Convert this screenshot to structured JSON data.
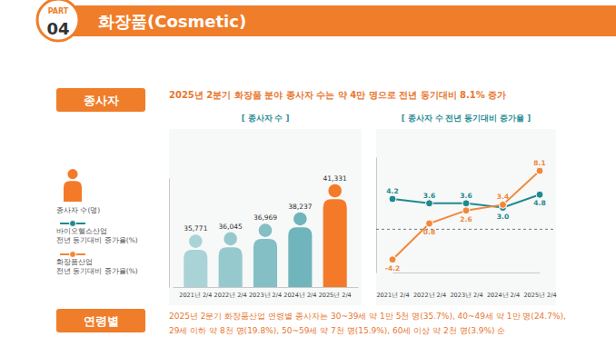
{
  "page": {
    "part_label": "PART",
    "part_number": "04",
    "title": "화장품(Cosmetic)",
    "sections": [
      {
        "label": "종사자",
        "text": [
          "2025년 2분기 화장품 분야 종사자 수는 약 4만 명으로 전년 동기대비 8.1% 증가"
        ]
      },
      {
        "label": "연령별",
        "text": [
          "2025년 2분기 화장품산업 연령별 종사자는 30~39세 약 1만 5천 명(35.7%), 40~49세 약 1만 명(24.7%),",
          "29세 이하 약 8천 명(19.8%), 50~59세 약 7천 명(15.9%), 60세 이상 약 2천 명(3.9%) 순"
        ]
      }
    ]
  },
  "chart_data": [
    {
      "type": "bar",
      "title": "[ 종사자 수 ]",
      "categories": [
        "2021년 2/4",
        "2022년 2/4",
        "2023년 2/4",
        "2024년 2/4",
        "2025년 2/4"
      ],
      "series": [
        {
          "name": "종사자 수(명)",
          "values": [
            35771,
            36045,
            36969,
            38237,
            41331
          ],
          "value_labels": [
            "35,771",
            "36,045",
            "36,969",
            "38,237",
            "41,331"
          ]
        }
      ],
      "colors": [
        "#a9d3d6",
        "#96c9cd",
        "#83bfc4",
        "#70b5bb",
        "#f47a2a"
      ],
      "ylim": [
        30000,
        42000
      ],
      "tick_labels": "x",
      "data_labels": true,
      "grid": false,
      "legend": "left"
    },
    {
      "type": "line",
      "title": "[ 종사자 수 전년 동기대비 증가율 ]",
      "categories": [
        "2021년 2/4",
        "2022년 2/4",
        "2023년 2/4",
        "2024년 2/4",
        "2025년 2/4"
      ],
      "series": [
        {
          "name": "바이오헬스산업 전년 동기대비 증가율(%)",
          "color": "#1f8a8f",
          "marker": "circle",
          "values": [
            4.2,
            3.6,
            3.6,
            3.0,
            4.8
          ],
          "value_labels": [
            "4.2",
            "3.6",
            "3.6",
            "3.0",
            "4.8"
          ]
        },
        {
          "name": "화장품산업 전년 동기대비 증가율(%)",
          "color": "#f0883a",
          "marker": "circle",
          "values": [
            -4.2,
            0.8,
            2.6,
            3.4,
            8.1
          ],
          "value_labels": [
            "-4.2",
            "0.8",
            "2.6",
            "3.4",
            "8.1"
          ]
        }
      ],
      "ylim": [
        -6,
        10
      ],
      "yticks": [
        0
      ],
      "grid": true,
      "tick_labels": "x",
      "data_labels": true,
      "legend": "left"
    }
  ]
}
